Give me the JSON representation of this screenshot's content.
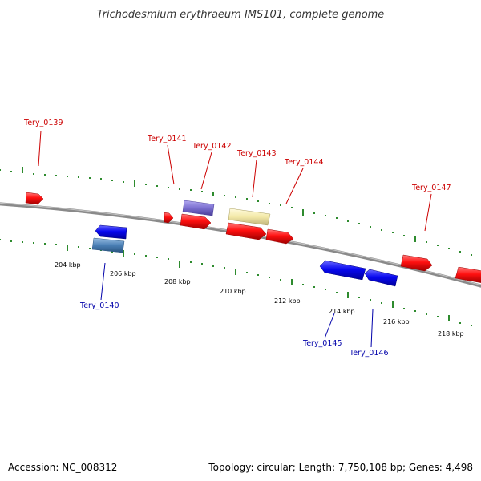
{
  "title": "Trichodesmium erythraeum IMS101, complete genome",
  "footer": {
    "accession": "Accession: NC_008312",
    "topology": "Topology: circular; Length: 7,750,108 bp; Genes: 4,498"
  },
  "colors": {
    "backbone": "#8a8a8a",
    "tick": "#2e8b2e",
    "forward_gene": "#ff0000",
    "reverse_gene": "#0000ff",
    "forward_label": "#cc0000",
    "reverse_label": "#0000aa",
    "purple_gene": "#7b6fd0",
    "yellow_gene": "#f3e9a8",
    "steelblue_gene": "#4a7fb5"
  },
  "scale_labels": [
    "204 kbp",
    "206 kbp",
    "208 kbp",
    "210 kbp",
    "212 kbp",
    "214 kbp",
    "216 kbp",
    "218 kbp"
  ],
  "gene_labels": {
    "forward": [
      "Tery_0139",
      "Tery_0141",
      "Tery_0142",
      "Tery_0143",
      "Tery_0144",
      "Tery_0147"
    ],
    "reverse": [
      "Tery_0140",
      "Tery_0145",
      "Tery_0146"
    ]
  }
}
